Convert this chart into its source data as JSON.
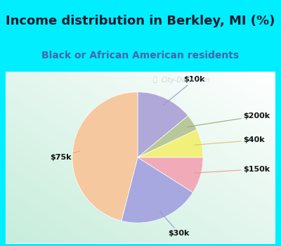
{
  "title": "Income distribution in Berkley, MI (%)",
  "subtitle": "Black or African American residents",
  "slices": [
    {
      "label": "$10k",
      "value": 14,
      "color": "#b0a8d8"
    },
    {
      "label": "$200k",
      "value": 4,
      "color": "#b8c898"
    },
    {
      "label": "$40k",
      "value": 7,
      "color": "#f0f07a"
    },
    {
      "label": "$150k",
      "value": 9,
      "color": "#f0aab8"
    },
    {
      "label": "$30k",
      "value": 20,
      "color": "#a8a8e0"
    },
    {
      "label": "$75k",
      "value": 46,
      "color": "#f5c8a0"
    }
  ],
  "start_angle": 90,
  "bg_color": "#00eeff",
  "chart_bg_left": "#e8f5ee",
  "chart_bg_right": "#d0ece0",
  "watermark": "City-Data.com",
  "title_fontsize": 13,
  "subtitle_fontsize": 10,
  "label_fontsize": 8,
  "title_color": "#1a1a2e",
  "subtitle_color": "#4466aa"
}
